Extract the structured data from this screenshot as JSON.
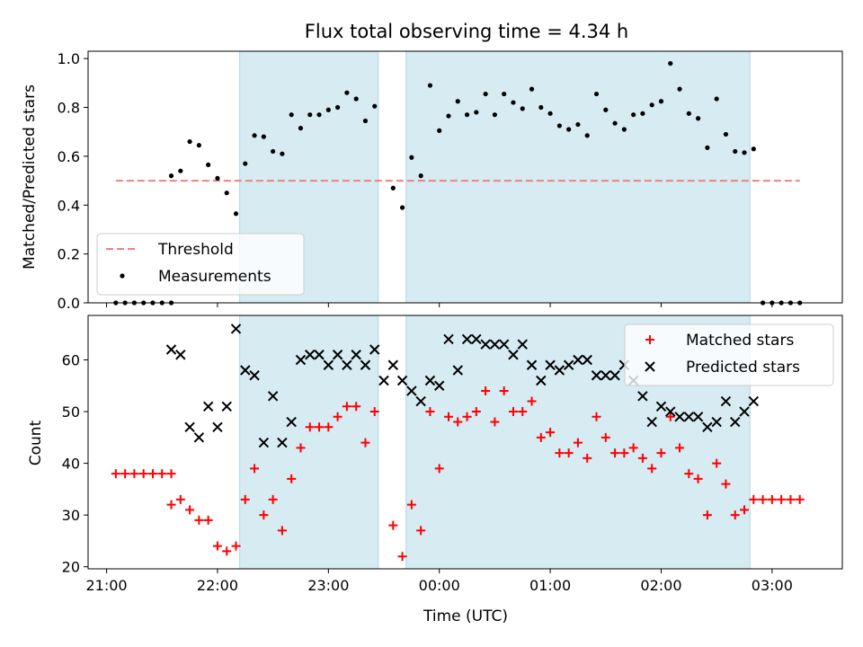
{
  "figure": {
    "title": "Flux total observing time = 4.34 h"
  },
  "chart_data": [
    {
      "id": "top",
      "type": "scatter",
      "xlabel": "",
      "ylabel": "Matched/Predicted stars",
      "xlim": [
        "20:50",
        "03:38"
      ],
      "ylim": [
        0.0,
        1.03
      ],
      "yticks": [
        0.0,
        0.2,
        0.4,
        0.6,
        0.8,
        1.0
      ],
      "ytick_labels": [
        "0.0",
        "0.2",
        "0.4",
        "0.6",
        "0.8",
        "1.0"
      ],
      "shaded_intervals": [
        [
          "22:12",
          "23:27"
        ],
        [
          "23:42",
          "02:48"
        ]
      ],
      "legend": {
        "position": "lower-left",
        "entries": [
          "Threshold",
          "Measurements"
        ]
      },
      "series": [
        {
          "name": "Threshold",
          "kind": "dashed-line",
          "color": "#f08080",
          "x": [
            "21:05",
            "03:15"
          ],
          "y": [
            0.5,
            0.5
          ]
        },
        {
          "name": "Measurements",
          "kind": "points",
          "color": "#000000",
          "x": [
            "21:05",
            "21:10",
            "21:15",
            "21:20",
            "21:25",
            "21:30",
            "21:35",
            "21:35",
            "21:40",
            "21:45",
            "21:50",
            "21:55",
            "22:00",
            "22:05",
            "22:10",
            "22:15",
            "22:20",
            "22:25",
            "22:30",
            "22:35",
            "22:40",
            "22:45",
            "22:50",
            "22:55",
            "23:00",
            "23:05",
            "23:10",
            "23:15",
            "23:20",
            "23:25",
            "23:35",
            "23:40",
            "23:45",
            "23:50",
            "23:55",
            "00:00",
            "00:05",
            "00:10",
            "00:15",
            "00:20",
            "00:25",
            "00:30",
            "00:35",
            "00:40",
            "00:45",
            "00:50",
            "00:55",
            "01:00",
            "01:05",
            "01:10",
            "01:15",
            "01:20",
            "01:25",
            "01:30",
            "01:35",
            "01:40",
            "01:45",
            "01:50",
            "01:55",
            "02:00",
            "02:05",
            "02:10",
            "02:15",
            "02:20",
            "02:25",
            "02:30",
            "02:35",
            "02:40",
            "02:45",
            "02:50",
            "02:55",
            "03:00",
            "03:05",
            "03:10",
            "03:15"
          ],
          "y": [
            0.0,
            0.0,
            0.0,
            0.0,
            0.0,
            0.0,
            0.0,
            0.52,
            0.54,
            0.66,
            0.645,
            0.565,
            0.51,
            0.45,
            0.365,
            0.57,
            0.685,
            0.68,
            0.62,
            0.61,
            0.77,
            0.715,
            0.77,
            0.77,
            0.79,
            0.8,
            0.86,
            0.835,
            0.745,
            0.805,
            0.47,
            0.39,
            0.595,
            0.52,
            0.89,
            0.705,
            0.765,
            0.825,
            0.77,
            0.78,
            0.855,
            0.77,
            0.855,
            0.82,
            0.795,
            0.875,
            0.8,
            0.775,
            0.725,
            0.71,
            0.73,
            0.685,
            0.855,
            0.79,
            0.735,
            0.71,
            0.77,
            0.775,
            0.81,
            0.825,
            0.98,
            0.875,
            0.775,
            0.755,
            0.635,
            0.835,
            0.69,
            0.62,
            0.615,
            0.63,
            0.0,
            0.0,
            0.0,
            0.0,
            0.0
          ]
        }
      ]
    },
    {
      "id": "bottom",
      "type": "scatter",
      "xlabel": "Time (UTC)",
      "ylabel": "Count",
      "xlim": [
        "20:50",
        "03:38"
      ],
      "ylim": [
        19.6,
        68.6
      ],
      "yticks": [
        20,
        30,
        40,
        50,
        60
      ],
      "ytick_labels": [
        "20",
        "30",
        "40",
        "50",
        "60"
      ],
      "xticks": [
        "21:00",
        "22:00",
        "23:00",
        "00:00",
        "01:00",
        "02:00",
        "03:00"
      ],
      "xtick_labels": [
        "21:00",
        "22:00",
        "23:00",
        "00:00",
        "01:00",
        "02:00",
        "03:00"
      ],
      "shaded_intervals": [
        [
          "22:12",
          "23:27"
        ],
        [
          "23:42",
          "02:48"
        ]
      ],
      "legend": {
        "position": "upper-right",
        "entries": [
          "Matched stars",
          "Predicted stars"
        ]
      },
      "series": [
        {
          "name": "Matched stars",
          "marker": "plus",
          "color": "#ff0000",
          "x": [
            "21:05",
            "21:10",
            "21:15",
            "21:20",
            "21:25",
            "21:30",
            "21:35",
            "21:35",
            "21:40",
            "21:45",
            "21:50",
            "21:55",
            "22:00",
            "22:05",
            "22:10",
            "22:15",
            "22:20",
            "22:25",
            "22:30",
            "22:35",
            "22:40",
            "22:45",
            "22:50",
            "22:55",
            "23:00",
            "23:05",
            "23:10",
            "23:15",
            "23:20",
            "23:25",
            "23:35",
            "23:40",
            "23:45",
            "23:50",
            "23:55",
            "00:00",
            "00:05",
            "00:10",
            "00:15",
            "00:20",
            "00:25",
            "00:30",
            "00:35",
            "00:40",
            "00:45",
            "00:50",
            "00:55",
            "01:00",
            "01:05",
            "01:10",
            "01:15",
            "01:20",
            "01:25",
            "01:30",
            "01:35",
            "01:40",
            "01:45",
            "01:50",
            "01:55",
            "02:00",
            "02:05",
            "02:10",
            "02:15",
            "02:20",
            "02:25",
            "02:30",
            "02:35",
            "02:40",
            "02:45",
            "02:50",
            "02:55",
            "03:00",
            "03:05",
            "03:10",
            "03:15"
          ],
          "y": [
            38,
            38,
            38,
            38,
            38,
            38,
            38,
            32,
            33,
            31,
            29,
            29,
            24,
            23,
            24,
            33,
            39,
            30,
            33,
            27,
            37,
            43,
            47,
            47,
            47,
            49,
            51,
            51,
            44,
            50,
            28,
            22,
            32,
            27,
            50,
            39,
            49,
            48,
            49,
            50,
            54,
            48,
            54,
            50,
            50,
            52,
            45,
            46,
            42,
            42,
            44,
            41,
            49,
            45,
            42,
            42,
            43,
            41,
            39,
            42,
            49,
            43,
            38,
            37,
            30,
            40,
            36,
            30,
            31,
            33,
            33,
            33,
            33,
            33,
            33
          ]
        },
        {
          "name": "Predicted stars",
          "marker": "x",
          "color": "#000000",
          "x": [
            "21:35",
            "21:40",
            "21:45",
            "21:50",
            "21:55",
            "22:00",
            "22:05",
            "22:10",
            "22:15",
            "22:20",
            "22:25",
            "22:30",
            "22:35",
            "22:40",
            "22:45",
            "22:50",
            "22:55",
            "23:00",
            "23:05",
            "23:10",
            "23:15",
            "23:20",
            "23:25",
            "23:30",
            "23:35",
            "23:40",
            "23:45",
            "23:50",
            "23:55",
            "00:00",
            "00:05",
            "00:10",
            "00:15",
            "00:20",
            "00:25",
            "00:30",
            "00:35",
            "00:40",
            "00:45",
            "00:50",
            "00:55",
            "01:00",
            "01:05",
            "01:10",
            "01:15",
            "01:20",
            "01:25",
            "01:30",
            "01:35",
            "01:40",
            "01:45",
            "01:50",
            "01:55",
            "02:00",
            "02:05",
            "02:10",
            "02:15",
            "02:20",
            "02:25",
            "02:30",
            "02:35",
            "02:40",
            "02:45",
            "02:50"
          ],
          "y": [
            62,
            61,
            47,
            45,
            51,
            47,
            51,
            66,
            58,
            57,
            44,
            53,
            44,
            48,
            60,
            61,
            61,
            59,
            61,
            59,
            61,
            59,
            62,
            56,
            59,
            56,
            54,
            52,
            56,
            55,
            64,
            58,
            64,
            64,
            63,
            63,
            63,
            61,
            63,
            59,
            56,
            59,
            58,
            59,
            60,
            60,
            57,
            57,
            57,
            59,
            56,
            53,
            48,
            51,
            50,
            49,
            49,
            49,
            47,
            48,
            52,
            48,
            50,
            52
          ]
        }
      ]
    }
  ]
}
